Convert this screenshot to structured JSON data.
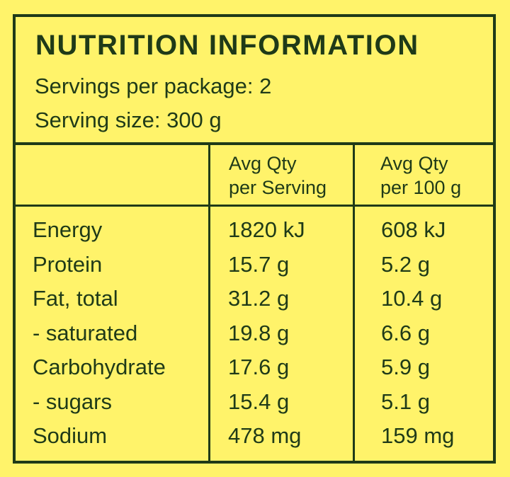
{
  "panel": {
    "title": "NUTRITION INFORMATION",
    "servings_per_package": "Servings per package: 2",
    "serving_size": "Serving size: 300 g"
  },
  "table": {
    "columns": [
      {
        "line1": "Avg Qty",
        "line2": "per Serving"
      },
      {
        "line1": "Avg Qty",
        "line2": "per 100 g"
      }
    ],
    "rows": [
      {
        "name": "Energy",
        "per_serving": "1820 kJ",
        "per_100g": "608 kJ"
      },
      {
        "name": "Protein",
        "per_serving": "15.7 g",
        "per_100g": "5.2 g"
      },
      {
        "name": "Fat, total",
        "per_serving": "31.2 g",
        "per_100g": "10.4 g"
      },
      {
        "name": "- saturated",
        "per_serving": "19.8 g",
        "per_100g": "6.6 g"
      },
      {
        "name": "Carbohydrate",
        "per_serving": "17.6 g",
        "per_100g": "5.9 g"
      },
      {
        "name": "- sugars",
        "per_serving": "15.4 g",
        "per_100g": "5.1 g"
      },
      {
        "name": "Sodium",
        "per_serving": "478 mg",
        "per_100g": "159 mg"
      }
    ]
  },
  "colors": {
    "background": "#fff36a",
    "ink": "#1f3a18"
  }
}
